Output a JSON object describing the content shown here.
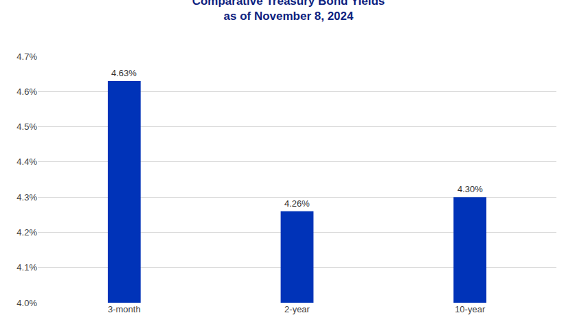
{
  "chart_data": {
    "type": "bar",
    "title": "Comparative Treasury Bond Yields",
    "subtitle": "as of November 8, 2024",
    "categories": [
      "3-month",
      "2-year",
      "10-year"
    ],
    "values": [
      4.63,
      4.26,
      4.3
    ],
    "value_labels": [
      "4.63%",
      "4.26%",
      "4.30%"
    ],
    "data_labels": true,
    "color": "#0033b8",
    "ylim": [
      4.0,
      4.7
    ],
    "yticks": [
      {
        "value": 4.0,
        "label": "4.0%"
      },
      {
        "value": 4.1,
        "label": "4.1%"
      },
      {
        "value": 4.2,
        "label": "4.2%"
      },
      {
        "value": 4.3,
        "label": "4.3%"
      },
      {
        "value": 4.4,
        "label": "4.4%"
      },
      {
        "value": 4.5,
        "label": "4.5%"
      },
      {
        "value": 4.6,
        "label": "4.6%"
      },
      {
        "value": 4.7,
        "label": "4.7%"
      }
    ],
    "grid": true
  }
}
